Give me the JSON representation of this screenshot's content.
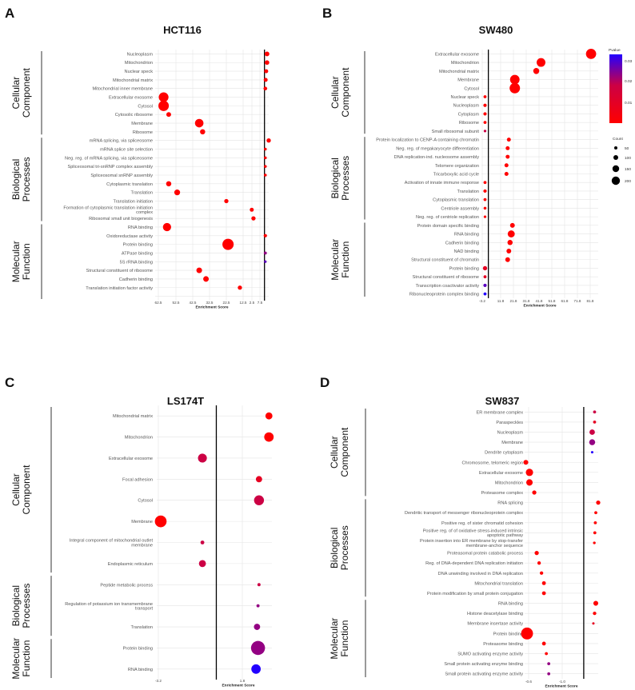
{
  "colors": {
    "low_p": "#ff0000",
    "mid_p": "#cc0044",
    "high_p": "#2200ff",
    "grid": "#e4e4e4",
    "axis": "#000000"
  },
  "legend": {
    "pvalue_title": "Pvalue",
    "pvalue_ticks": [
      "0.03",
      "0.02",
      "0.01"
    ],
    "count_title": "Count",
    "count_values": [
      "50",
      "100",
      "150",
      "200"
    ]
  },
  "chart_data": [
    {
      "panel": "A",
      "title": "HCT116",
      "type": "scatter",
      "xlabel": "Enrichment Score",
      "x_reversed": true,
      "xlim": [
        67,
        0
      ],
      "ref_line_x": 2.5,
      "xticks": [
        "62.5",
        "52.5",
        "42.5",
        "32.5",
        "22.5",
        "12.5",
        "2.5",
        "7.5"
      ],
      "sections": [
        {
          "name_lines": [
            "Cellular",
            "Component"
          ],
          "points": [
            {
              "term": "Nucleoplasm",
              "x": 1,
              "count": 50,
              "p": 0
            },
            {
              "term": "Mitochondrion",
              "x": 1,
              "count": 45,
              "p": 0
            },
            {
              "term": "Nuclear speck",
              "x": 1.5,
              "count": 35,
              "p": 0
            },
            {
              "term": "Mitochondrial matrix",
              "x": 1.8,
              "count": 35,
              "p": 0
            },
            {
              "term": "Mitochondrial inner membrane",
              "x": 2,
              "count": 30,
              "p": 0
            },
            {
              "term": "Extracellular exosome",
              "x": 62,
              "count": 210,
              "p": 0
            },
            {
              "term": "Cytosol",
              "x": 62,
              "count": 240,
              "p": 0
            },
            {
              "term": "Cytosolic ribosome",
              "x": 59,
              "count": 50,
              "p": 0
            },
            {
              "term": "Membrane",
              "x": 41,
              "count": 160,
              "p": 0
            },
            {
              "term": "Ribosome",
              "x": 39,
              "count": 60,
              "p": 0
            }
          ]
        },
        {
          "name_lines": [
            "Biological",
            "Processes"
          ],
          "points": [
            {
              "term": "mRNA splicing, via spliceosome",
              "x": 0,
              "count": 40,
              "p": 0
            },
            {
              "term": "mRNA splice site selection",
              "x": 2,
              "count": 18,
              "p": 0
            },
            {
              "term": "Neg. reg. of mRNA splicing, via spliceosome",
              "x": 2,
              "count": 18,
              "p": 0
            },
            {
              "term": "Spliceosomal tri-snRNP complex assembly",
              "x": 2,
              "count": 18,
              "p": 0
            },
            {
              "term": "Spliceosomal snRNP assembly",
              "x": 2,
              "count": 18,
              "p": 0
            },
            {
              "term": "Cytoplasmic translation",
              "x": 59,
              "count": 60,
              "p": 0
            },
            {
              "term": "Translation",
              "x": 54,
              "count": 75,
              "p": 0
            },
            {
              "term": "Translation initiation",
              "x": 25,
              "count": 40,
              "p": 0
            },
            {
              "term": "Formation of cytoplasmic translation initiation complex",
              "x": 10,
              "count": 35,
              "p": 0
            },
            {
              "term": "Ribosomal small unit biogenesis",
              "x": 9,
              "count": 40,
              "p": 0
            }
          ]
        },
        {
          "name_lines": [
            "Molecular",
            "Function"
          ],
          "points": [
            {
              "term": "RNA binding",
              "x": 60,
              "count": 150,
              "p": 0
            },
            {
              "term": "Oxidoreductase activity",
              "x": 2,
              "count": 25,
              "p": 0
            },
            {
              "term": "Protein binding",
              "x": 24,
              "count": 280,
              "p": 0
            },
            {
              "term": "ATPase binding",
              "x": 2,
              "count": 20,
              "p": 0.03
            },
            {
              "term": "5S rRNA binding",
              "x": 2,
              "count": 15,
              "p": 0.04
            },
            {
              "term": "Structural constituent of ribosome",
              "x": 41,
              "count": 70,
              "p": 0
            },
            {
              "term": "Cadherin binding",
              "x": 37,
              "count": 70,
              "p": 0
            },
            {
              "term": "Translation initiation factor activity",
              "x": 17,
              "count": 40,
              "p": 0
            },
            {
              "term": "",
              "x": 0,
              "count": 0,
              "p": 0
            }
          ]
        }
      ]
    },
    {
      "panel": "B",
      "title": "SW480",
      "type": "scatter",
      "xlabel": "Enrichment Score",
      "x_reversed": false,
      "xlim": [
        -4,
        94
      ],
      "ref_line_x": 1.8,
      "xticks": [
        "-3.2",
        "11.8",
        "21.8",
        "31.8",
        "41.8",
        "51.8",
        "61.8",
        "71.8",
        "81.8"
      ],
      "sections": [
        {
          "name_lines": [
            "Cellular",
            "Component"
          ],
          "points": [
            {
              "term": "Extracellular exosome",
              "x": 88,
              "count": 230,
              "p": 0
            },
            {
              "term": "Mitochondrion",
              "x": 46,
              "count": 170,
              "p": 0
            },
            {
              "term": "Mitochondrial matrix",
              "x": 42,
              "count": 80,
              "p": 0
            },
            {
              "term": "Membrane",
              "x": 24,
              "count": 200,
              "p": 0
            },
            {
              "term": "Cytosol",
              "x": 24,
              "count": 240,
              "p": 0
            },
            {
              "term": "Nuclear speck",
              "x": -1,
              "count": 20,
              "p": 0
            },
            {
              "term": "Nucleoplasm",
              "x": -1,
              "count": 25,
              "p": 0
            },
            {
              "term": "Cytoplasm",
              "x": -1,
              "count": 25,
              "p": 0
            },
            {
              "term": "Ribosome",
              "x": -1,
              "count": 20,
              "p": 0
            },
            {
              "term": "Small ribosomal subunit",
              "x": -1,
              "count": 15,
              "p": 0.02
            }
          ]
        },
        {
          "name_lines": [
            "Biological",
            "Processes"
          ],
          "points": [
            {
              "term": "Protein localization to CENP-A containing chromatin",
              "x": 19,
              "count": 35,
              "p": 0
            },
            {
              "term": "Neg. reg. of megakaryocyte differentiation",
              "x": 18,
              "count": 35,
              "p": 0
            },
            {
              "term": "DNA replication-ind. nucleosome assembly",
              "x": 18,
              "count": 35,
              "p": 0
            },
            {
              "term": "Telomere organization",
              "x": 17,
              "count": 35,
              "p": 0
            },
            {
              "term": "Tricarboxylic acid cycle",
              "x": 17,
              "count": 35,
              "p": 0
            },
            {
              "term": "Activation of innate immune response",
              "x": -1,
              "count": 20,
              "p": 0
            },
            {
              "term": "Translation",
              "x": -1,
              "count": 25,
              "p": 0
            },
            {
              "term": "Cytoplasmic translation",
              "x": -1,
              "count": 20,
              "p": 0
            },
            {
              "term": "Centriole assembly",
              "x": -1,
              "count": 18,
              "p": 0
            },
            {
              "term": "Neg. reg. of centriole replication",
              "x": -1,
              "count": 15,
              "p": 0
            }
          ]
        },
        {
          "name_lines": [
            "Molecular",
            "Function"
          ],
          "points": [
            {
              "term": "Protein domain specific binding",
              "x": 22,
              "count": 50,
              "p": 0
            },
            {
              "term": "RNA binding",
              "x": 21,
              "count": 110,
              "p": 0
            },
            {
              "term": "Cadherin binding",
              "x": 20,
              "count": 60,
              "p": 0
            },
            {
              "term": "NAD binding",
              "x": 19,
              "count": 50,
              "p": 0
            },
            {
              "term": "Structural constituent of chromatin",
              "x": 18,
              "count": 50,
              "p": 0
            },
            {
              "term": "Protein binding",
              "x": -1,
              "count": 40,
              "p": 0.01
            },
            {
              "term": "Structural constituent of ribosome",
              "x": -1,
              "count": 20,
              "p": 0.01
            },
            {
              "term": "Transcription coactivator activity",
              "x": -1,
              "count": 25,
              "p": 0.04
            },
            {
              "term": "Ribonucleoprotein complex binding",
              "x": -1,
              "count": 20,
              "p": 0.05
            }
          ]
        }
      ]
    },
    {
      "panel": "C",
      "title": "LS174T",
      "type": "scatter",
      "xlabel": "Enrichment Score",
      "x_reversed": false,
      "xlim": [
        -3.4,
        2.4
      ],
      "ref_line_x": -0.4,
      "xticks": [
        "-3.2",
        "1.8"
      ],
      "sections": [
        {
          "name_lines": [
            "Cellular",
            "Component"
          ],
          "points": [
            {
              "term": "Mitochondrial matrix",
              "x": 2.25,
              "count": 50,
              "p": 0
            },
            {
              "term": "Mitochondrion",
              "x": 2.25,
              "count": 90,
              "p": 0
            },
            {
              "term": "Extracellular exosome",
              "x": -1.1,
              "count": 80,
              "p": 0.02
            },
            {
              "term": "Focal adhesion",
              "x": 1.75,
              "count": 40,
              "p": 0.01
            },
            {
              "term": "Cytosol",
              "x": 1.75,
              "count": 100,
              "p": 0.02
            },
            {
              "term": "Membrane",
              "x": -3.2,
              "count": 140,
              "p": 0
            },
            {
              "term": "Integral component of mitochondrial outlet membrane",
              "x": -1.1,
              "count": 15,
              "p": 0.02
            },
            {
              "term": "Endoplasmic reticulum",
              "x": -1.1,
              "count": 50,
              "p": 0.02
            }
          ]
        },
        {
          "name_lines": [
            "Biological",
            "Processes"
          ],
          "points": [
            {
              "term": "Peptide metabolic process",
              "x": 1.75,
              "count": 10,
              "p": 0.02
            },
            {
              "term": "Regulation of potassium ion transmembrane transport",
              "x": 1.7,
              "count": 10,
              "p": 0.03
            },
            {
              "term": "Translation",
              "x": 1.65,
              "count": 40,
              "p": 0.03
            }
          ]
        },
        {
          "name_lines": [
            "Molecular",
            "Function"
          ],
          "points": [
            {
              "term": "Protein binding",
              "x": 1.7,
              "count": 200,
              "p": 0.03
            },
            {
              "term": "RNA binding",
              "x": 1.6,
              "count": 90,
              "p": 0.05
            }
          ]
        }
      ]
    },
    {
      "panel": "D",
      "title": "SW837",
      "type": "scatter",
      "xlabel": "Enrichment Score",
      "x_reversed": false,
      "xlim": [
        -0.62,
        -0.925
      ],
      "ref_line_x": -0.865,
      "xticks": [
        "-0.6",
        "-1.0"
      ],
      "sections": [
        {
          "name_lines": [
            "Cellular",
            "Component"
          ],
          "points": [
            {
              "term": "ER membrane complex",
              "x": -0.91,
              "count": 15,
              "p": 0.02
            },
            {
              "term": "Paraspeckles",
              "x": -0.91,
              "count": 15,
              "p": 0.01
            },
            {
              "term": "Nucleoplasm",
              "x": -0.9,
              "count": 50,
              "p": 0.02
            },
            {
              "term": "Membrane",
              "x": -0.9,
              "count": 60,
              "p": 0.03
            },
            {
              "term": "Dendrite cytoplasm",
              "x": -0.9,
              "count": 10,
              "p": 0.05
            },
            {
              "term": "Chromosome, telomeric region",
              "x": -0.625,
              "count": 40,
              "p": 0
            },
            {
              "term": "Extracellular exosome",
              "x": -0.64,
              "count": 90,
              "p": 0
            },
            {
              "term": "Mitochondrion",
              "x": -0.64,
              "count": 70,
              "p": 0
            },
            {
              "term": "Proteasome complex",
              "x": -0.66,
              "count": 30,
              "p": 0
            }
          ]
        },
        {
          "name_lines": [
            "Biological",
            "Processes"
          ],
          "points": [
            {
              "term": "RNA splicing",
              "x": -0.925,
              "count": 30,
              "p": 0
            },
            {
              "term": "Dendritic transport of messenger ribonucleoprotein complex",
              "x": -0.915,
              "count": 15,
              "p": 0
            },
            {
              "term": "Positive reg. of sister chromatid cohesion",
              "x": -0.913,
              "count": 15,
              "p": 0
            },
            {
              "term": "Positive reg. of of oxidative stress-induced intrinsic apoptotic pathway",
              "x": -0.911,
              "count": 15,
              "p": 0
            },
            {
              "term": "Protein insertion into ER membrane by stop-transfer membrane-anchor sequence",
              "x": -0.909,
              "count": 12,
              "p": 0
            },
            {
              "term": "Proteasomal protein catabolic process",
              "x": -0.67,
              "count": 30,
              "p": 0
            },
            {
              "term": "Reg. of DNA-dependent DNA replication initiation",
              "x": -0.68,
              "count": 20,
              "p": 0
            },
            {
              "term": "DNA unwinding involved in DNA replication",
              "x": -0.69,
              "count": 20,
              "p": 0
            },
            {
              "term": "Mitochondrial translation",
              "x": -0.7,
              "count": 25,
              "p": 0
            },
            {
              "term": "Protein modification by small protein conjugation",
              "x": -0.7,
              "count": 25,
              "p": 0
            }
          ]
        },
        {
          "name_lines": [
            "Molecular",
            "Function"
          ],
          "points": [
            {
              "term": "RNA binding",
              "x": -0.915,
              "count": 40,
              "p": 0
            },
            {
              "term": "Histone deacetylase binding",
              "x": -0.91,
              "count": 20,
              "p": 0
            },
            {
              "term": "Membrane insertase activity",
              "x": -0.905,
              "count": 10,
              "p": 0.01
            },
            {
              "term": "Protein binding",
              "x": -0.63,
              "count": 240,
              "p": 0
            },
            {
              "term": "Proteasome binding",
              "x": -0.7,
              "count": 25,
              "p": 0
            },
            {
              "term": "SUMO activating enzyme activity",
              "x": -0.71,
              "count": 15,
              "p": 0
            },
            {
              "term": "Small protein activating enzyme binding",
              "x": -0.72,
              "count": 15,
              "p": 0.03
            },
            {
              "term": "Small protein activating enzyme activity",
              "x": -0.72,
              "count": 15,
              "p": 0.03
            }
          ]
        }
      ]
    }
  ]
}
